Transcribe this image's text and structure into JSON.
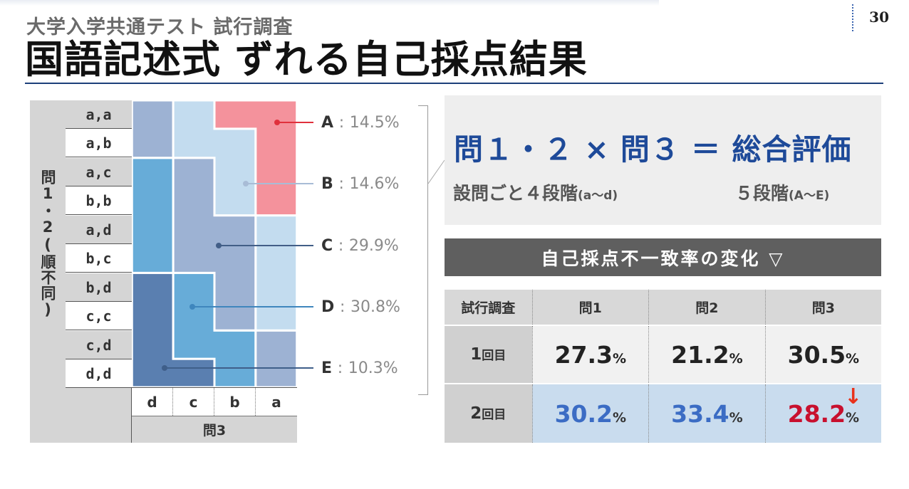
{
  "header": {
    "subtitle": "大学入学共通テスト 試行調査",
    "title": "国語記述式 ずれる自己採点結果",
    "page_number": "30"
  },
  "grid": {
    "row_axis_label": "問1・2(順不同)",
    "rows": [
      "a,a",
      "a,b",
      "a,c",
      "b,b",
      "a,d",
      "b,c",
      "b,d",
      "c,c",
      "c,d",
      "d,d"
    ],
    "columns": [
      "d",
      "c",
      "b",
      "a"
    ],
    "col_axis_label": "問3",
    "colors": {
      "A": "#f4929c",
      "B": "#c3dcef",
      "C": "#9db2d3",
      "D": "#67acd8",
      "E": "#5a7fb0"
    }
  },
  "labels": [
    {
      "grade": "A",
      "sep": ":",
      "pct": "14.5%",
      "color": "#e0303c"
    },
    {
      "grade": "B",
      "sep": ":",
      "pct": "14.6%",
      "color": "#a8bcd6"
    },
    {
      "grade": "C",
      "sep": ":",
      "pct": "29.9%",
      "color": "#425e87"
    },
    {
      "grade": "D",
      "sep": ":",
      "pct": "30.8%",
      "color": "#3f86bd"
    },
    {
      "grade": "E",
      "sep": ":",
      "pct": "10.3%",
      "color": "#3f5f8a"
    }
  ],
  "formula": {
    "main": "問１・２ × 問３ ＝ 総合評価",
    "left_main": "設問ごと４段階",
    "left_small": "(a～d)",
    "right_main": "５段階",
    "right_small": "(A～E)"
  },
  "table_title": "自己採点不一致率の変化 ▽",
  "table": {
    "headers": [
      "試行調査",
      "問1",
      "問2",
      "問3"
    ],
    "rows": [
      {
        "label_num": "1",
        "label_unit": "回目",
        "values": [
          "27.3",
          "21.2",
          "30.5"
        ]
      },
      {
        "label_num": "2",
        "label_unit": "回目",
        "values": [
          "30.2",
          "33.4",
          "28.2"
        ]
      }
    ],
    "unit": "%",
    "change_arrow": "↓"
  }
}
